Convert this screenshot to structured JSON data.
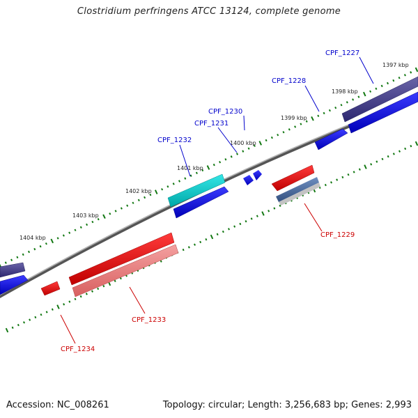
{
  "title": "Clostridium perfringens ATCC 13124, complete genome",
  "footer": {
    "accession": "Accession: NC_008261",
    "stats": "Topology: circular; Length: 3,256,683 bp; Genes: 2,993"
  },
  "colors": {
    "forward_label": "#0000cc",
    "reverse_label": "#cc0000",
    "tick": "#117711",
    "backbone": "#777777"
  },
  "kbp_labels": [
    "1397 kbp",
    "1398 kbp",
    "1399 kbp",
    "1400 kbp",
    "1401 kbp",
    "1402 kbp",
    "1403 kbp",
    "1404 kbp"
  ],
  "genes": [
    {
      "label": "CPF_1227",
      "strand": "forward"
    },
    {
      "label": "CPF_1228",
      "strand": "forward"
    },
    {
      "label": "CPF_1230",
      "strand": "forward"
    },
    {
      "label": "CPF_1231",
      "strand": "forward"
    },
    {
      "label": "CPF_1232",
      "strand": "forward"
    },
    {
      "label": "CPF_1229",
      "strand": "reverse"
    },
    {
      "label": "CPF_1233",
      "strand": "reverse"
    },
    {
      "label": "CPF_1234",
      "strand": "reverse"
    }
  ]
}
